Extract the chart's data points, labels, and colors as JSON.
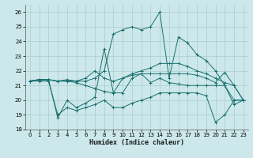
{
  "xlabel": "Humidex (Indice chaleur)",
  "bg_color": "#cce8ea",
  "grid_color": "#aacccc",
  "line_color": "#1a7070",
  "xlim": [
    -0.5,
    23.5
  ],
  "ylim": [
    18,
    26.5
  ],
  "yticks": [
    18,
    19,
    20,
    21,
    22,
    23,
    24,
    25,
    26
  ],
  "xticks": [
    0,
    1,
    2,
    3,
    4,
    5,
    6,
    7,
    8,
    9,
    10,
    11,
    12,
    13,
    14,
    15,
    16,
    17,
    18,
    19,
    20,
    21,
    22,
    23
  ],
  "series": [
    [
      21.3,
      21.4,
      21.4,
      18.8,
      20.0,
      19.5,
      19.8,
      20.2,
      23.5,
      20.5,
      20.5,
      21.5,
      21.8,
      21.2,
      21.5,
      21.2,
      21.1,
      21.0,
      21.0,
      21.0,
      21.0,
      21.0,
      20.0,
      20.0
    ],
    [
      21.3,
      21.4,
      21.4,
      21.3,
      21.3,
      21.3,
      21.5,
      22.0,
      21.5,
      21.3,
      21.5,
      21.7,
      21.8,
      21.8,
      21.8,
      21.8,
      21.8,
      21.8,
      21.7,
      21.5,
      21.2,
      21.9,
      21.0,
      20.0
    ],
    [
      21.3,
      21.4,
      21.4,
      21.3,
      21.3,
      21.2,
      21.0,
      20.8,
      20.6,
      20.5,
      21.5,
      21.8,
      22.0,
      22.2,
      22.5,
      22.5,
      22.5,
      22.3,
      22.0,
      21.8,
      21.5,
      21.2,
      21.0,
      20.0
    ],
    [
      21.3,
      21.4,
      21.4,
      21.3,
      21.4,
      21.3,
      21.3,
      21.5,
      22.0,
      24.5,
      24.8,
      25.0,
      24.8,
      25.0,
      26.0,
      21.5,
      24.3,
      23.9,
      23.1,
      22.7,
      22.0,
      21.0,
      19.7,
      20.0
    ],
    [
      21.3,
      21.3,
      21.3,
      19.0,
      19.5,
      19.3,
      19.5,
      19.7,
      20.0,
      19.5,
      19.5,
      19.8,
      20.0,
      20.2,
      20.5,
      20.5,
      20.5,
      20.5,
      20.5,
      20.3,
      18.5,
      19.0,
      20.0,
      20.0
    ]
  ]
}
